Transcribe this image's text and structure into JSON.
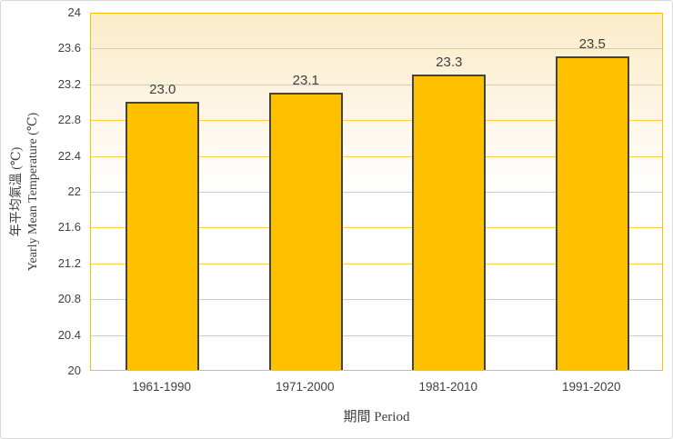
{
  "chart_data": {
    "type": "bar",
    "categories": [
      "1961-1990",
      "1971-2000",
      "1981-2010",
      "1991-2020"
    ],
    "values": [
      23.0,
      23.1,
      23.3,
      23.5
    ],
    "value_labels": [
      "23.0",
      "23.1",
      "23.3",
      "23.5"
    ],
    "xlabel": "期間 Period",
    "ylabel_line1": "年平均氣溫 (℃)",
    "ylabel_line2": "Yearly Mean Temperature (℃)",
    "ylim": [
      20,
      24
    ],
    "ytick_step": 0.4,
    "yticks": [
      "24",
      "23.6",
      "23.2",
      "22.8",
      "22.4",
      "22",
      "21.6",
      "21.2",
      "20.8",
      "20.4",
      "20"
    ],
    "grid": true,
    "legend": false,
    "colors": {
      "bar_fill": "#FFC000",
      "bar_border": "#434343",
      "gridline": "#FFCE45",
      "axis_line": "#FFC000",
      "plot_bg_gradient_top": "#FBECC8",
      "plot_bg_gradient_bottom": "#FFFFFF",
      "text": "#404040",
      "chart_border": "#D8D8D8"
    }
  }
}
